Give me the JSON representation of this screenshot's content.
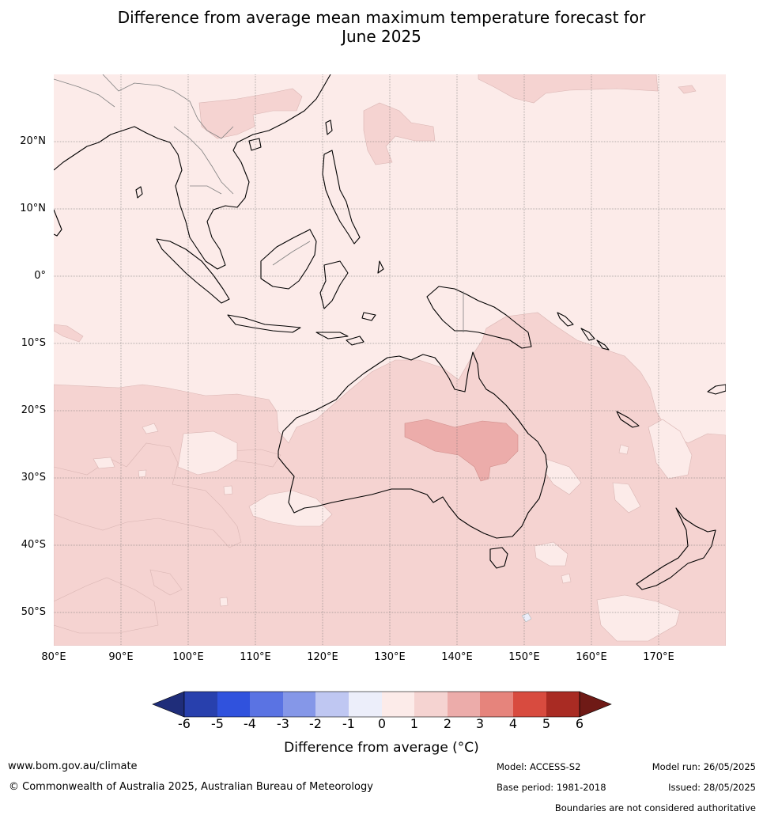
{
  "title_line1": "Difference from average mean maximum temperature forecast for",
  "title_line2": "June 2025",
  "axes": {
    "lon_labels": [
      "80°E",
      "90°E",
      "100°E",
      "110°E",
      "120°E",
      "130°E",
      "140°E",
      "150°E",
      "160°E",
      "170°E"
    ],
    "lat_labels": [
      "20°N",
      "10°N",
      "0°",
      "10°S",
      "20°S",
      "30°S",
      "40°S",
      "50°S"
    ]
  },
  "colorbar": {
    "title": "Difference from average (°C)",
    "ticks": [
      "-6",
      "-5",
      "-4",
      "-3",
      "-2",
      "-1",
      "0",
      "1",
      "2",
      "3",
      "4",
      "5",
      "6"
    ],
    "colors": [
      "#1f2d7a",
      "#2840ad",
      "#3052dd",
      "#5a73e3",
      "#8597e8",
      "#bfc7f2",
      "#eceefa",
      "#fcebe9",
      "#f5d3d1",
      "#ecacaa",
      "#e6847c",
      "#d84b3f",
      "#a92b23",
      "#6f1a16"
    ]
  },
  "map_colors": {
    "above_0_to_1": "#fcebe9",
    "above_1_to_2": "#f5d3d1",
    "above_2_to_3": "#ecacaa",
    "below_0_to_minus1": "#eceefa"
  },
  "footer": {
    "website": "www.bom.gov.au/climate",
    "copyright": "© Commonwealth of Australia 2025, Australian Bureau of Meteorology",
    "model": "Model: ACCESS-S2",
    "model_run": "Model run: 26/05/2025",
    "base_period": "Base period: 1981-2018",
    "issued": "Issued: 28/05/2025",
    "disclaimer": "Boundaries are not considered authoritative"
  }
}
